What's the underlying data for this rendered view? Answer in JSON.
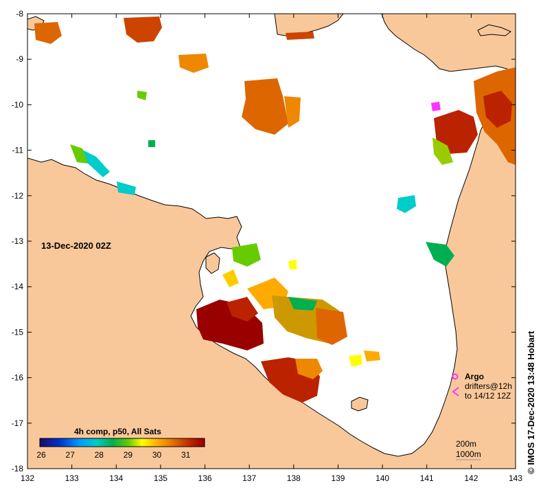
{
  "map": {
    "date_label": "13-Dec-2020 02Z",
    "credit": "© IMOS 17-Dec-2020 13:48 Hobart",
    "x_ticks": [
      "132",
      "133",
      "134",
      "135",
      "136",
      "137",
      "138",
      "139",
      "140",
      "141",
      "142",
      "143"
    ],
    "y_ticks": [
      "-8",
      "-9",
      "-10",
      "-11",
      "-12",
      "-13",
      "-14",
      "-15",
      "-16",
      "-17",
      "-18"
    ],
    "colors": {
      "land": "#f9c89a",
      "ocean": "#ffffff",
      "argo": "#ff33ff",
      "drifter": "#ff33ff",
      "outline": "#000000"
    }
  },
  "legend": {
    "title": "4h comp, p50, All Sats",
    "ticks": [
      "26",
      "27",
      "28",
      "29",
      "30",
      "31"
    ],
    "argo_label": "Argo",
    "drifters_label": "drifters@12h",
    "drifters_to": "to 14/12 12Z",
    "depth_200": "200m",
    "depth_1000": "1000m"
  }
}
